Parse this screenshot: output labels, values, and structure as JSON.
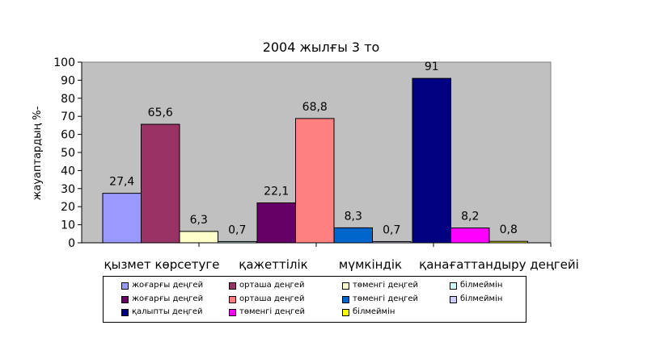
{
  "chart_data": {
    "type": "bar",
    "title": "2004 жылғы 3 то",
    "ylabel": "жауаптардың %-",
    "xlabel": "",
    "ylim": [
      0,
      100
    ],
    "yticks": [
      0,
      10,
      20,
      30,
      40,
      50,
      60,
      70,
      80,
      90,
      100
    ],
    "grid": false,
    "plot_background": "#c0c0c0",
    "categories": [
      "қызмет көрсетуге",
      "қажеттілік",
      "мүмкіндік",
      "қанағаттандыру деңгейі"
    ],
    "series": [
      {
        "name": "жоғарғы деңгей",
        "color": "#9999ff",
        "values": [
          27.4,
          null,
          null,
          null
        ]
      },
      {
        "name": "орташа деңгей",
        "color": "#993366",
        "values": [
          65.6,
          null,
          null,
          null
        ]
      },
      {
        "name": "төменгі деңгей",
        "color": "#ffffcc",
        "values": [
          6.3,
          null,
          null,
          null
        ]
      },
      {
        "name": "білмеймін",
        "color": "#ccffff",
        "values": [
          0.7,
          null,
          null,
          null
        ]
      },
      {
        "name": "жоғарғы деңгей",
        "color": "#660066",
        "values": [
          null,
          22.1,
          null,
          null
        ]
      },
      {
        "name": "орташа деңгей",
        "color": "#ff8080",
        "values": [
          null,
          68.8,
          null,
          null
        ]
      },
      {
        "name": "төменгі деңгей",
        "color": "#0066cc",
        "values": [
          null,
          8.3,
          null,
          null
        ]
      },
      {
        "name": "білмеймін",
        "color": "#ccccff",
        "values": [
          null,
          0.7,
          null,
          null
        ]
      },
      {
        "name": "қалыпты деңгей",
        "color": "#000080",
        "values": [
          null,
          null,
          91,
          null
        ]
      },
      {
        "name": "төменгі деңгей",
        "color": "#ff00ff",
        "values": [
          null,
          null,
          8.2,
          null
        ]
      },
      {
        "name": "білмеймін",
        "color": "#ffff00",
        "values": [
          null,
          null,
          0.8,
          null
        ]
      }
    ],
    "data_labels": [
      "27,4",
      "65,6",
      "6,3",
      "0,7",
      "22,1",
      "68,8",
      "8,3",
      "0,7",
      "91",
      "8,2",
      "0,8"
    ],
    "legend_position": "bottom"
  }
}
